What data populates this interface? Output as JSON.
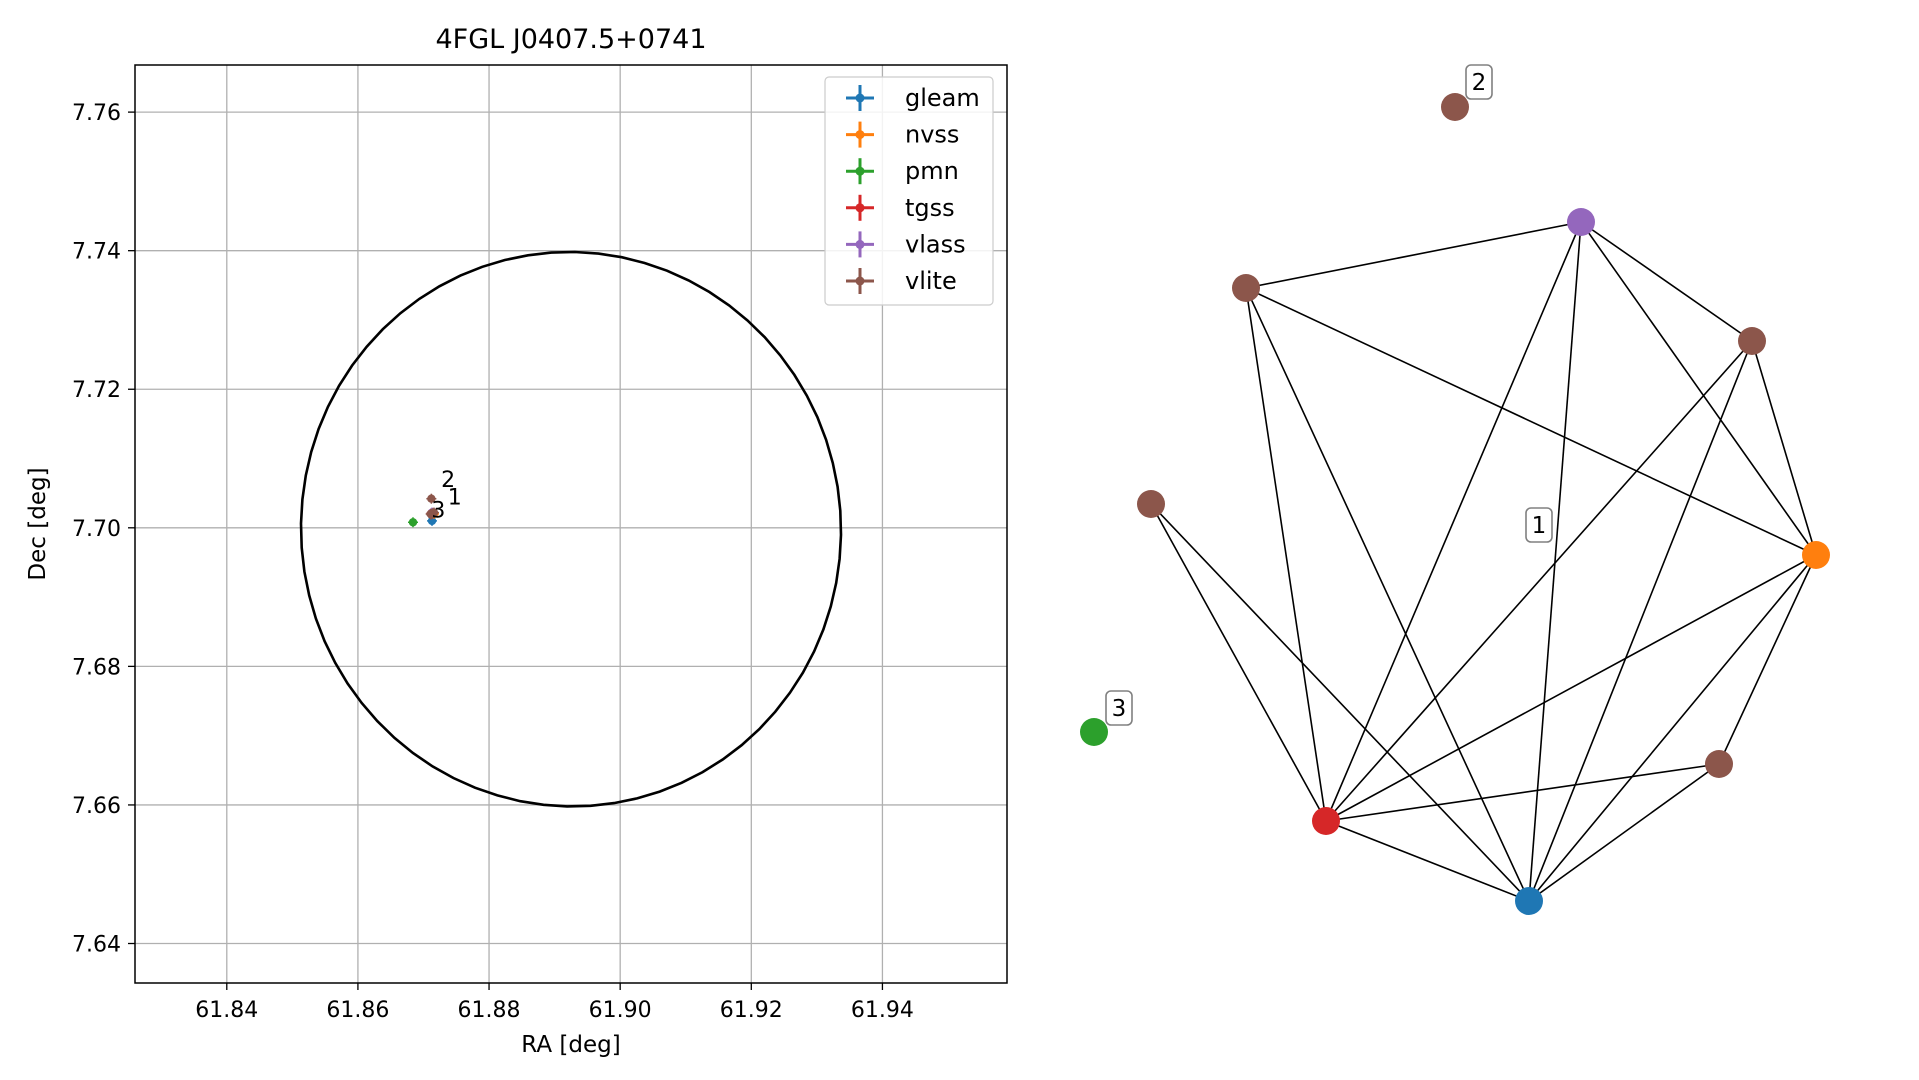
{
  "figure": {
    "colors": {
      "gleam": "#1f77b4",
      "nvss": "#ff7f0e",
      "pmn": "#2ca02c",
      "tgss": "#d62728",
      "vlass": "#9467bd",
      "vlite": "#8c564b"
    }
  },
  "chart_data": [
    {
      "type": "scatter",
      "title": "4FGL J0407.5+0741",
      "xlabel": "RA [deg]",
      "ylabel": "Dec [deg]",
      "xlim": [
        61.826,
        61.959
      ],
      "ylim": [
        7.6343,
        7.7668
      ],
      "xticks": [
        61.84,
        61.86,
        61.88,
        61.9,
        61.92,
        61.94
      ],
      "xtick_labels": [
        "61.84",
        "61.86",
        "61.88",
        "61.90",
        "61.92",
        "61.94"
      ],
      "yticks": [
        7.64,
        7.66,
        7.68,
        7.7,
        7.72,
        7.74,
        7.76
      ],
      "ytick_labels": [
        "7.64",
        "7.66",
        "7.68",
        "7.70",
        "7.72",
        "7.74",
        "7.76"
      ],
      "grid": true,
      "legend_position": "top-right",
      "legend": [
        "gleam",
        "nvss",
        "pmn",
        "tgss",
        "vlass",
        "vlite"
      ],
      "ellipse": {
        "center": [
          61.8925,
          7.6998
        ],
        "semi_axis_ra": 0.0412,
        "semi_axis_dec": 0.04,
        "rotation_deg": -6
      },
      "series": [
        {
          "name": "gleam",
          "points": [
            {
              "x": 61.8713,
              "y": 7.701
            }
          ]
        },
        {
          "name": "nvss",
          "points": [
            {
              "x": 61.8716,
              "y": 7.702
            }
          ]
        },
        {
          "name": "pmn",
          "points": [
            {
              "x": 61.8684,
              "y": 7.7008
            }
          ]
        },
        {
          "name": "tgss",
          "points": [
            {
              "x": 61.8712,
              "y": 7.7021
            }
          ]
        },
        {
          "name": "vlass",
          "points": [
            {
              "x": 61.8713,
              "y": 7.7022
            }
          ]
        },
        {
          "name": "vlite",
          "points": [
            {
              "x": 61.8712,
              "y": 7.7042
            },
            {
              "x": 61.8714,
              "y": 7.7021
            },
            {
              "x": 61.8711,
              "y": 7.702
            },
            {
              "x": 61.8716,
              "y": 7.7022
            },
            {
              "x": 61.8712,
              "y": 7.7019
            }
          ]
        }
      ],
      "annotations": [
        {
          "text": "2",
          "x": 61.8727,
          "y": 7.7059
        },
        {
          "text": "1",
          "x": 61.8737,
          "y": 7.7034
        },
        {
          "text": "3",
          "x": 61.8712,
          "y": 7.7015
        }
      ]
    },
    {
      "type": "network",
      "nodes": [
        {
          "id": "n1",
          "survey": "vlass"
        },
        {
          "id": "n2",
          "survey": "vlite"
        },
        {
          "id": "n3",
          "survey": "vlite"
        },
        {
          "id": "n4",
          "survey": "nvss"
        },
        {
          "id": "n5",
          "survey": "vlite"
        },
        {
          "id": "n6",
          "survey": "gleam"
        },
        {
          "id": "n7",
          "survey": "tgss"
        },
        {
          "id": "n8",
          "survey": "vlite"
        },
        {
          "id": "n9",
          "survey": "vlite"
        },
        {
          "id": "n10",
          "survey": "pmn"
        }
      ],
      "edges": [
        [
          "n2",
          "n1"
        ],
        [
          "n2",
          "n4"
        ],
        [
          "n2",
          "n7"
        ],
        [
          "n2",
          "n6"
        ],
        [
          "n1",
          "n3"
        ],
        [
          "n1",
          "n4"
        ],
        [
          "n1",
          "n7"
        ],
        [
          "n1",
          "n6"
        ],
        [
          "n3",
          "n4"
        ],
        [
          "n3",
          "n7"
        ],
        [
          "n3",
          "n6"
        ],
        [
          "n4",
          "n5"
        ],
        [
          "n4",
          "n7"
        ],
        [
          "n4",
          "n6"
        ],
        [
          "n5",
          "n7"
        ],
        [
          "n5",
          "n6"
        ],
        [
          "n7",
          "n6"
        ],
        [
          "n8",
          "n7"
        ],
        [
          "n8",
          "n6"
        ]
      ],
      "labels": [
        {
          "text": "1",
          "near": "component-1"
        },
        {
          "text": "2",
          "near": "n9"
        },
        {
          "text": "3",
          "near": "n10"
        }
      ]
    }
  ]
}
